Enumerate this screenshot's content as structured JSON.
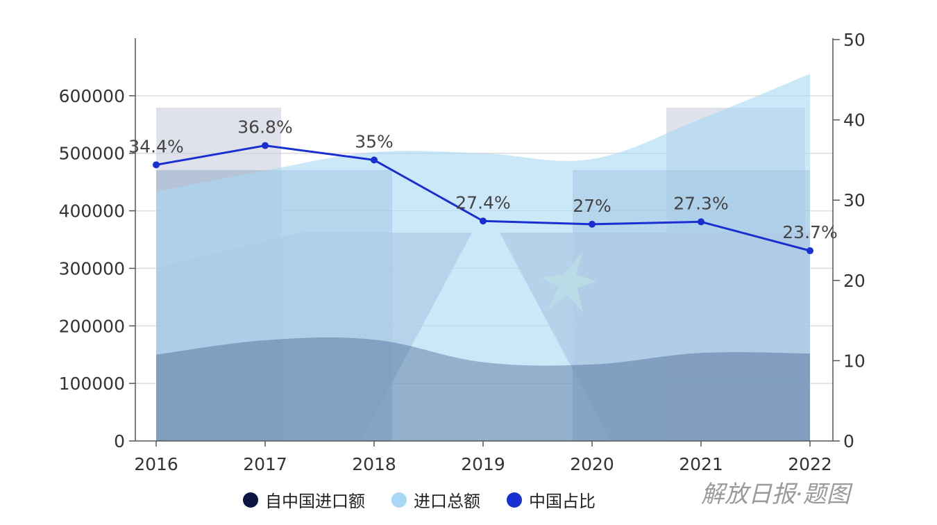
{
  "chart_data": {
    "type": "area+line",
    "title": "",
    "categories": [
      "2016",
      "2017",
      "2018",
      "2019",
      "2020",
      "2021",
      "2022"
    ],
    "series": [
      {
        "name": "自中国进口额",
        "type": "area",
        "axis": "left",
        "color": "#0d1440",
        "values": [
          150000,
          175000,
          176000,
          137000,
          133000,
          153000,
          152000
        ]
      },
      {
        "name": "进口总额",
        "type": "area",
        "axis": "left",
        "color": "#a8d8f5",
        "values": [
          433000,
          470000,
          502000,
          500000,
          490000,
          560000,
          638000
        ]
      },
      {
        "name": "中国占比",
        "type": "line",
        "axis": "right",
        "color": "#1a2fd0",
        "values": [
          34.4,
          36.8,
          35,
          27.4,
          27,
          27.3,
          23.7
        ],
        "labels": [
          "34.4%",
          "36.8%",
          "35%",
          "27.4%",
          "27%",
          "27.3%",
          "23.7%"
        ]
      }
    ],
    "left_axis": {
      "min": 0,
      "max": 700000,
      "ticks": [
        "0",
        "100000",
        "200000",
        "300000",
        "400000",
        "500000",
        "600000"
      ]
    },
    "right_axis": {
      "min": 0,
      "max": 50,
      "ticks": [
        "0",
        "10",
        "20",
        "30",
        "40",
        "50"
      ]
    },
    "grid": true,
    "legend_position": "bottom"
  },
  "watermark": "解放日报·题图"
}
